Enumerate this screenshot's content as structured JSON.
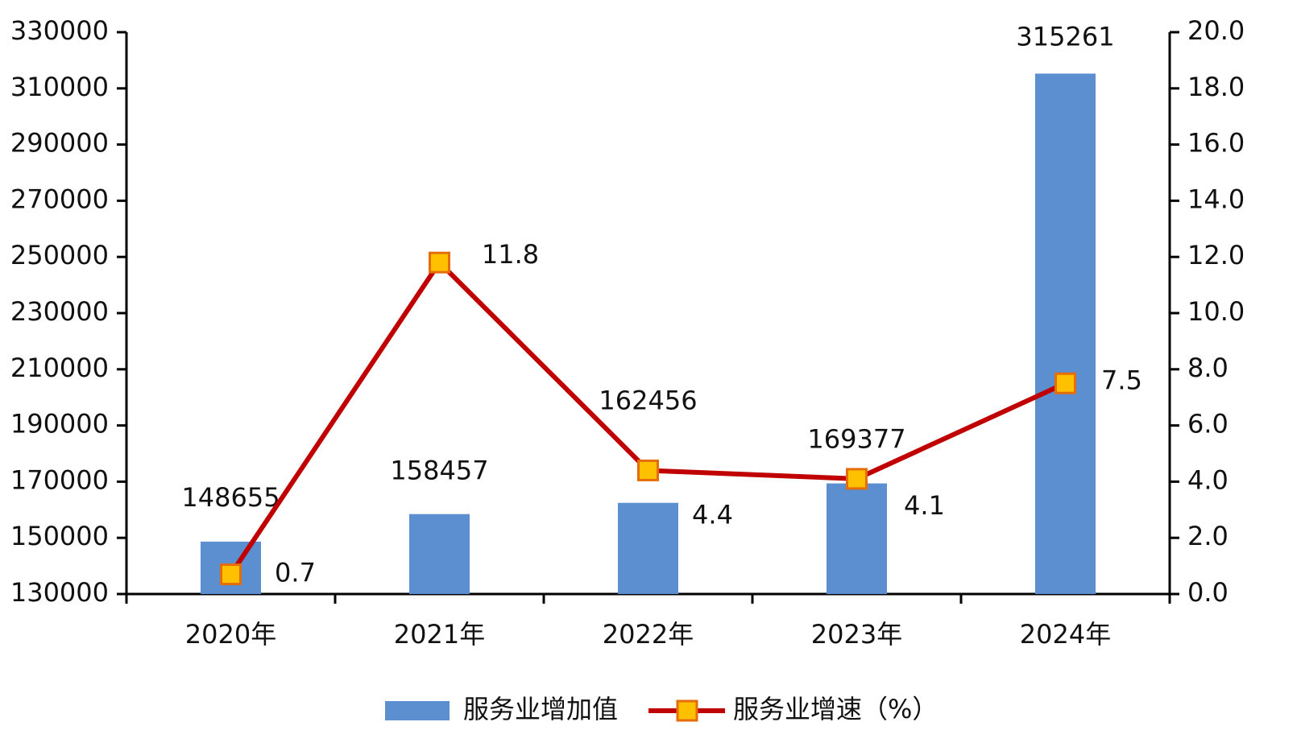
{
  "chart_data": {
    "type": "bar-line",
    "categories": [
      "2020年",
      "2021年",
      "2022年",
      "2023年",
      "2024年"
    ],
    "series": [
      {
        "name": "服务业增加值",
        "type": "bar",
        "color": "#5b8fcf",
        "axis": "y",
        "values": [
          148655,
          158457,
          162456,
          169377,
          315261
        ]
      },
      {
        "name": "服务业增速（%）",
        "type": "line",
        "color": "#c00000",
        "marker_color": "#ffc000",
        "axis": "y2",
        "values": [
          0.7,
          11.8,
          4.4,
          4.1,
          7.5
        ]
      }
    ],
    "ylim": [
      130000,
      330000
    ],
    "yticks": [
      130000,
      150000,
      170000,
      190000,
      210000,
      230000,
      250000,
      270000,
      290000,
      310000,
      330000
    ],
    "y2lim": [
      0,
      20
    ],
    "y2ticks": [
      {
        "value": 0,
        "label": "0.0"
      },
      {
        "value": 2,
        "label": "2.0"
      },
      {
        "value": 4,
        "label": "4.0"
      },
      {
        "value": 6,
        "label": "6.0"
      },
      {
        "value": 8,
        "label": "8.0"
      },
      {
        "value": 10,
        "label": "10.0"
      },
      {
        "value": 12,
        "label": "12.0"
      },
      {
        "value": 14,
        "label": "14.0"
      },
      {
        "value": 16,
        "label": "16.0"
      },
      {
        "value": 18,
        "label": "18.0"
      },
      {
        "value": 20,
        "label": "20.0"
      }
    ],
    "legend": "bottom"
  }
}
